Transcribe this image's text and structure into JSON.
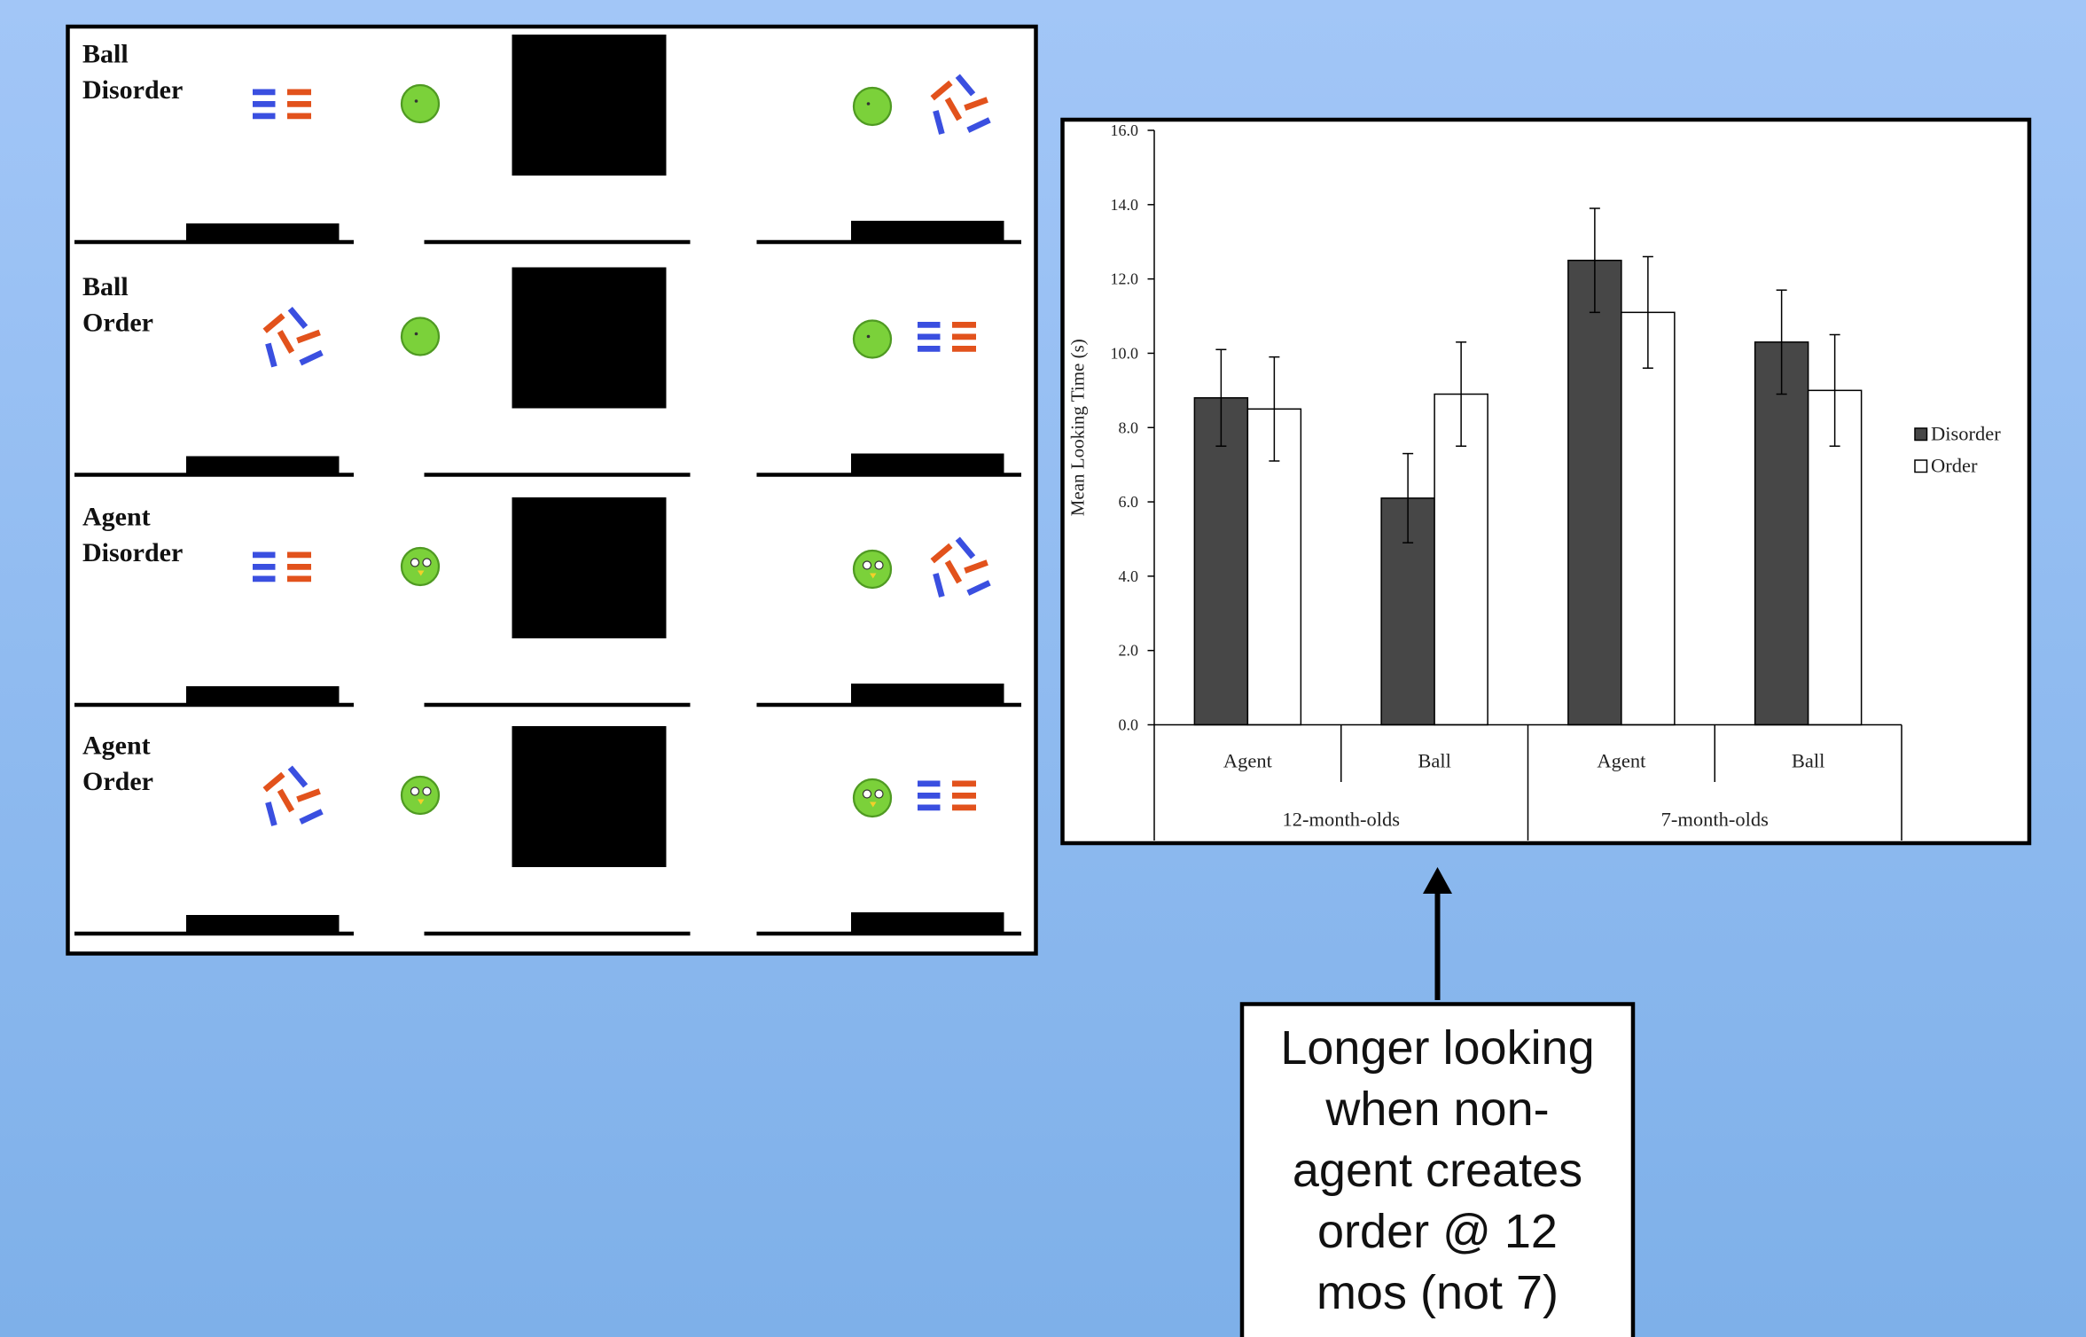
{
  "panels": [
    {
      "label": [
        "Ball",
        "Disorder"
      ]
    },
    {
      "label": [
        "Ball",
        "Order"
      ]
    },
    {
      "label": [
        "Agent",
        "Disorder"
      ]
    },
    {
      "label": [
        "Agent",
        "Order"
      ]
    }
  ],
  "chart_data": {
    "type": "bar",
    "y_label": "Mean Looking Time (s)",
    "categories": [
      "Agent",
      "Ball",
      "Agent",
      "Ball"
    ],
    "groups": [
      "12-month-olds",
      "7-month-olds"
    ],
    "series": [
      {
        "name": "Disorder",
        "color": "#474747",
        "values": [
          8.8,
          6.1,
          12.5,
          10.3
        ],
        "errors": [
          1.3,
          1.2,
          1.4,
          1.4
        ]
      },
      {
        "name": "Order",
        "color": "#ffffff",
        "values": [
          8.5,
          8.9,
          11.1,
          9.0
        ],
        "errors": [
          1.4,
          1.4,
          1.5,
          1.5
        ]
      }
    ],
    "ylim": [
      0,
      16
    ],
    "yticks": [
      {
        "value": 0,
        "label": "0.0"
      },
      {
        "value": 2,
        "label": "2.0"
      },
      {
        "value": 4,
        "label": "4.0"
      },
      {
        "value": 6,
        "label": "6.0"
      },
      {
        "value": 8,
        "label": "8.0"
      },
      {
        "value": 10,
        "label": "10.0"
      },
      {
        "value": 12,
        "label": "12.0"
      },
      {
        "value": 14,
        "label": "14.0"
      },
      {
        "value": 16,
        "label": "16.0"
      }
    ],
    "grid": false,
    "legend": "right"
  },
  "callout": {
    "lines": [
      "Longer looking",
      "when non-",
      "agent creates",
      "order @ 12",
      "mos (not 7)"
    ]
  }
}
